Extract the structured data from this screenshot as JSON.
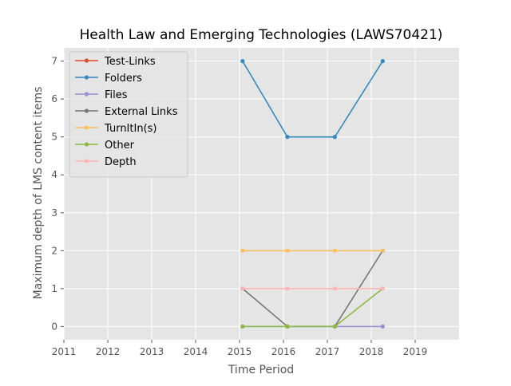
{
  "chart_data": {
    "type": "line",
    "title": "Health Law and Emerging Technologies (LAWS70421)",
    "xlabel": "Time Period",
    "ylabel": "Maximum depth of LMS content items",
    "xlim": [
      2011,
      2020
    ],
    "ylim": [
      -0.35,
      7.35
    ],
    "xticks": [
      "2011",
      "2012",
      "2013",
      "2014",
      "2015",
      "2016",
      "2017",
      "2018",
      "2019"
    ],
    "yticks": [
      "0",
      "1",
      "2",
      "3",
      "4",
      "5",
      "6",
      "7"
    ],
    "grid": true,
    "legend_position": "top-left",
    "x": [
      2015.07,
      2016.09,
      2017.17,
      2018.26
    ],
    "series": [
      {
        "name": "Test-Links",
        "color": "#E24A33",
        "values": [
          null,
          null,
          null,
          null
        ]
      },
      {
        "name": "Folders",
        "color": "#348ABD",
        "values": [
          7,
          5,
          5,
          7
        ]
      },
      {
        "name": "Files",
        "color": "#988ED5",
        "values": [
          0,
          0,
          0,
          0
        ]
      },
      {
        "name": "External Links",
        "color": "#777777",
        "values": [
          1,
          0,
          0,
          2
        ]
      },
      {
        "name": "TurnItIn(s)",
        "color": "#FBC15E",
        "values": [
          2,
          2,
          2,
          2
        ]
      },
      {
        "name": "Other",
        "color": "#8EBA42",
        "values": [
          0,
          0,
          0,
          1
        ]
      },
      {
        "name": "Depth",
        "color": "#FFB5B8",
        "values": [
          1,
          1,
          1,
          1
        ]
      }
    ]
  }
}
